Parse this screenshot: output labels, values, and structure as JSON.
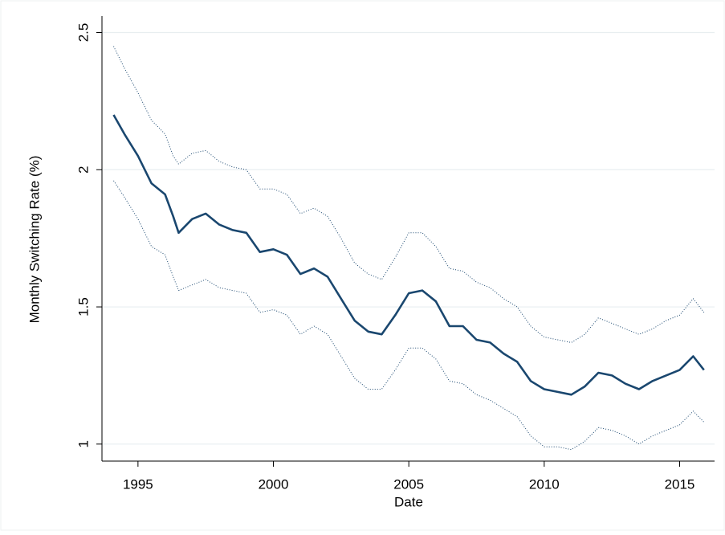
{
  "chart_data": {
    "type": "line",
    "xlabel": "Date",
    "ylabel": "Monthly Switching Rate (%)",
    "x": [
      1994.1,
      1994.5,
      1995.0,
      1995.5,
      1996.0,
      1996.3,
      1996.5,
      1997.0,
      1997.5,
      1998.0,
      1998.5,
      1999.0,
      1999.5,
      2000.0,
      2000.5,
      2001.0,
      2001.5,
      2002.0,
      2002.5,
      2003.0,
      2003.5,
      2004.0,
      2004.5,
      2005.0,
      2005.5,
      2006.0,
      2006.5,
      2007.0,
      2007.5,
      2008.0,
      2008.5,
      2009.0,
      2009.5,
      2010.0,
      2010.5,
      2011.0,
      2011.5,
      2012.0,
      2012.5,
      2013.0,
      2013.5,
      2014.0,
      2014.5,
      2015.0,
      2015.5,
      2015.9
    ],
    "series": [
      {
        "color": "#1a476f",
        "style": "solid",
        "values": [
          2.2,
          2.13,
          2.05,
          1.95,
          1.91,
          1.83,
          1.77,
          1.82,
          1.84,
          1.8,
          1.78,
          1.77,
          1.7,
          1.71,
          1.69,
          1.62,
          1.64,
          1.61,
          1.53,
          1.45,
          1.41,
          1.4,
          1.47,
          1.55,
          1.56,
          1.52,
          1.43,
          1.43,
          1.38,
          1.37,
          1.33,
          1.3,
          1.23,
          1.2,
          1.19,
          1.18,
          1.21,
          1.26,
          1.25,
          1.22,
          1.2,
          1.23,
          1.25,
          1.27,
          1.32,
          1.27
        ]
      },
      {
        "color": "#1a476f",
        "style": "dotted",
        "values": [
          2.45,
          2.37,
          2.28,
          2.18,
          2.13,
          2.05,
          2.02,
          2.06,
          2.07,
          2.03,
          2.01,
          2.0,
          1.93,
          1.93,
          1.91,
          1.84,
          1.86,
          1.83,
          1.75,
          1.66,
          1.62,
          1.6,
          1.68,
          1.77,
          1.77,
          1.72,
          1.64,
          1.63,
          1.59,
          1.57,
          1.53,
          1.5,
          1.43,
          1.39,
          1.38,
          1.37,
          1.4,
          1.46,
          1.44,
          1.42,
          1.4,
          1.42,
          1.45,
          1.47,
          1.53,
          1.48
        ]
      },
      {
        "color": "#1a476f",
        "style": "dotted",
        "values": [
          1.96,
          1.9,
          1.82,
          1.72,
          1.69,
          1.61,
          1.56,
          1.58,
          1.6,
          1.57,
          1.56,
          1.55,
          1.48,
          1.49,
          1.47,
          1.4,
          1.43,
          1.4,
          1.32,
          1.24,
          1.2,
          1.2,
          1.27,
          1.35,
          1.35,
          1.31,
          1.23,
          1.22,
          1.18,
          1.16,
          1.13,
          1.1,
          1.03,
          0.99,
          0.99,
          0.98,
          1.01,
          1.06,
          1.05,
          1.03,
          1.0,
          1.03,
          1.05,
          1.07,
          1.12,
          1.08
        ]
      }
    ],
    "xlim": [
      1993.67,
      2016.29
    ],
    "ylim": [
      0.938,
      2.56
    ],
    "xticks": [
      1995,
      2000,
      2005,
      2010,
      2015
    ],
    "yticks": [
      1,
      1.5,
      2,
      2.5
    ],
    "grid": true
  }
}
